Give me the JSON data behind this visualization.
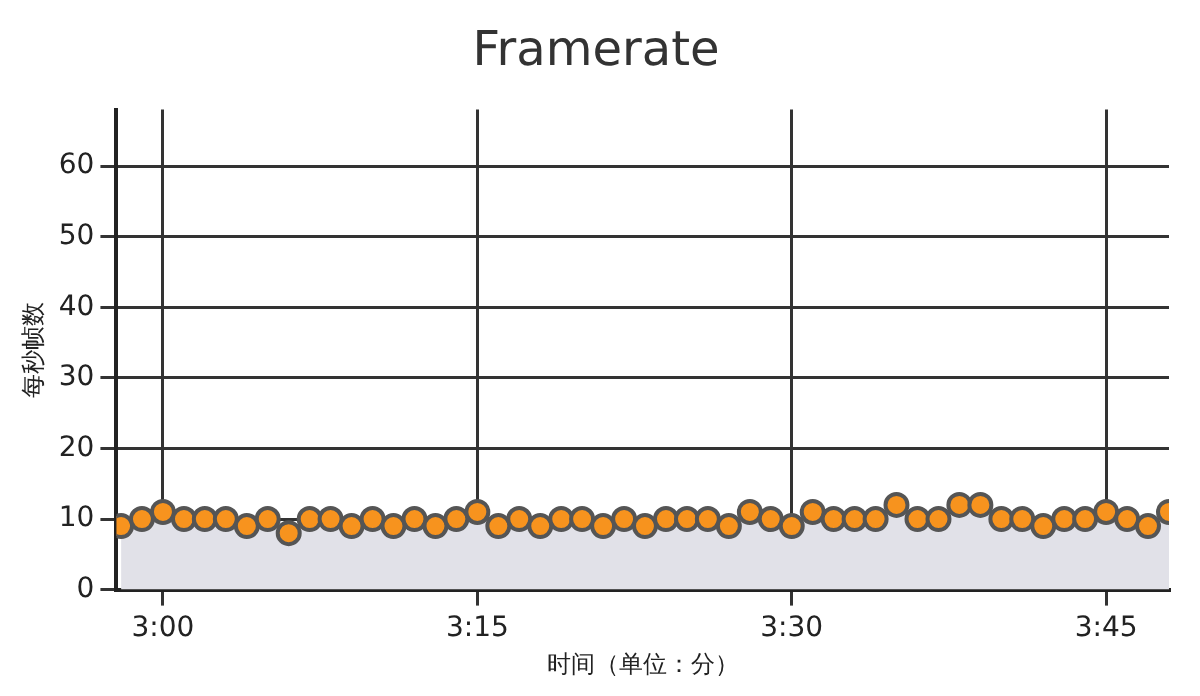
{
  "chart_data": {
    "type": "area",
    "title": "Framerate",
    "xlabel": "时间（单位：分）",
    "ylabel": "每秒帧数",
    "x": [
      2.9667,
      2.9833,
      3.0,
      3.0167,
      3.0333,
      3.05,
      3.0667,
      3.0833,
      3.1,
      3.1167,
      3.1333,
      3.15,
      3.1667,
      3.1833,
      3.2,
      3.2167,
      3.2333,
      3.25,
      3.2667,
      3.2833,
      3.3,
      3.3167,
      3.3333,
      3.35,
      3.3667,
      3.3833,
      3.4,
      3.4167,
      3.4333,
      3.45,
      3.4667,
      3.4833,
      3.5,
      3.5167,
      3.5333,
      3.55,
      3.5667,
      3.5833,
      3.6,
      3.6167,
      3.6333,
      3.65,
      3.6667,
      3.6833,
      3.7,
      3.7167,
      3.7333,
      3.75,
      3.7667,
      3.7833,
      3.8
    ],
    "series": [
      {
        "color": "#f7931e",
        "values": [
          9,
          10,
          11,
          10,
          10,
          10,
          9,
          10,
          8,
          10,
          10,
          9,
          10,
          9,
          10,
          9,
          10,
          11,
          9,
          10,
          9,
          10,
          10,
          9,
          10,
          9,
          10,
          10,
          10,
          9,
          11,
          10,
          9,
          11,
          10,
          10,
          10,
          12,
          10,
          10,
          12,
          12,
          10,
          10,
          9,
          10,
          10,
          11,
          10,
          9,
          11
        ]
      }
    ],
    "xlim": [
      2.963,
      3.8
    ],
    "ylim": [
      0,
      68
    ],
    "xticks": [
      {
        "value": 3,
        "label": "3:00"
      },
      {
        "value": 3.25,
        "label": "3:15"
      },
      {
        "value": 3.5,
        "label": "3:30"
      },
      {
        "value": 3.75,
        "label": "3:45"
      }
    ],
    "yticks": [
      0,
      10,
      20,
      30,
      40,
      50,
      60
    ],
    "grid": true,
    "marker": "circle",
    "legend": false
  }
}
